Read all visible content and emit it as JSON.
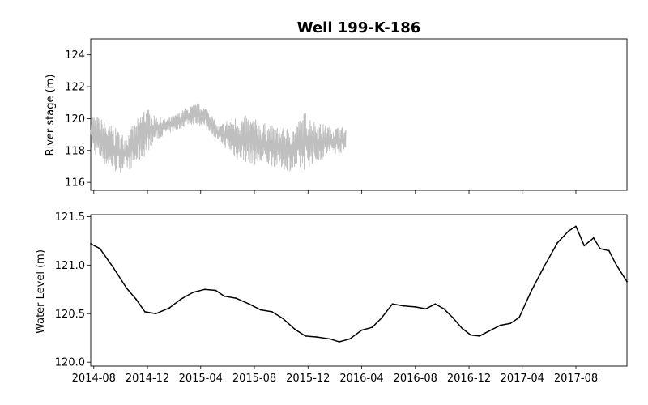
{
  "chart_data": [
    {
      "type": "line",
      "title": "Well 199-K-186",
      "ylabel": "River stage (m)",
      "xlabel": "",
      "x_range": [
        "2014-07-25",
        "2017-11-25"
      ],
      "ylim": [
        115.5,
        125.0
      ],
      "yticks": [
        "116",
        "118",
        "120",
        "122",
        "124"
      ],
      "grid": false,
      "series": [
        {
          "color": "#bfbfbf",
          "style": "noisy band (high-frequency fluctuation)",
          "x": [
            "2014-07-25",
            "2014-08-20",
            "2014-09-15",
            "2014-10-10",
            "2014-11-05",
            "2014-11-25",
            "2014-12-15",
            "2015-01-10",
            "2015-02-05",
            "2015-03-01",
            "2015-03-25",
            "2015-04-20",
            "2015-05-10",
            "2015-06-01",
            "2015-06-25",
            "2015-07-20",
            "2015-08-15",
            "2015-09-10",
            "2015-10-05",
            "2015-11-01",
            "2015-11-25",
            "2015-12-20",
            "2016-01-15",
            "2016-02-05",
            "2016-02-25"
          ],
          "lower": [
            118.0,
            117.2,
            116.6,
            116.6,
            117.0,
            117.6,
            118.5,
            119.0,
            119.2,
            119.6,
            119.6,
            119.2,
            118.6,
            118.0,
            117.3,
            117.2,
            117.0,
            117.0,
            116.8,
            116.6,
            116.8,
            117.2,
            117.6,
            117.8,
            117.8
          ],
          "upper": [
            120.4,
            120.0,
            119.5,
            119.0,
            119.8,
            120.9,
            120.2,
            120.0,
            120.3,
            120.7,
            121.0,
            120.6,
            119.5,
            120.0,
            120.2,
            120.2,
            119.8,
            119.6,
            119.4,
            119.6,
            120.5,
            119.8,
            119.6,
            119.5,
            119.5
          ]
        }
      ]
    },
    {
      "type": "line",
      "xlabel": "",
      "ylabel": "Water Level (m)",
      "x_range": [
        "2014-07-25",
        "2017-11-25"
      ],
      "ylim": [
        119.96,
        121.52
      ],
      "yticks": [
        "120.0",
        "120.5",
        "121.0",
        "121.5"
      ],
      "xticks": [
        "2014-08",
        "2014-12",
        "2015-04",
        "2015-08",
        "2015-12",
        "2016-04",
        "2016-08",
        "2016-12",
        "2017-04",
        "2017-08"
      ],
      "grid": false,
      "series": [
        {
          "color": "#000000",
          "x": [
            "2014-07-25",
            "2014-08-15",
            "2014-09-15",
            "2014-10-15",
            "2014-11-05",
            "2014-11-25",
            "2014-12-20",
            "2015-01-20",
            "2015-02-15",
            "2015-03-15",
            "2015-04-10",
            "2015-05-05",
            "2015-05-25",
            "2015-06-20",
            "2015-07-20",
            "2015-08-15",
            "2015-09-10",
            "2015-10-05",
            "2015-11-01",
            "2015-11-25",
            "2015-12-20",
            "2016-01-20",
            "2016-02-10",
            "2016-03-05",
            "2016-04-01",
            "2016-04-25",
            "2016-05-15",
            "2016-06-10",
            "2016-07-05",
            "2016-08-01",
            "2016-08-25",
            "2016-09-15",
            "2016-10-05",
            "2016-10-25",
            "2016-11-15",
            "2016-12-05",
            "2016-12-25",
            "2017-01-15",
            "2017-02-10",
            "2017-03-05",
            "2017-03-25",
            "2017-04-20",
            "2017-05-20",
            "2017-06-20",
            "2017-07-15",
            "2017-08-01",
            "2017-08-20",
            "2017-09-10",
            "2017-09-25",
            "2017-10-15",
            "2017-11-01",
            "2017-11-25"
          ],
          "y": [
            121.22,
            121.17,
            120.97,
            120.76,
            120.65,
            120.52,
            120.5,
            120.56,
            120.65,
            120.72,
            120.75,
            120.74,
            120.68,
            120.66,
            120.6,
            120.54,
            120.52,
            120.45,
            120.34,
            120.27,
            120.26,
            120.24,
            120.21,
            120.24,
            120.33,
            120.36,
            120.45,
            120.6,
            120.58,
            120.57,
            120.55,
            120.6,
            120.55,
            120.46,
            120.35,
            120.28,
            120.27,
            120.32,
            120.38,
            120.4,
            120.46,
            120.72,
            120.98,
            121.23,
            121.35,
            121.4,
            121.2,
            121.28,
            121.17,
            121.15,
            121.0,
            120.83
          ]
        }
      ]
    }
  ]
}
